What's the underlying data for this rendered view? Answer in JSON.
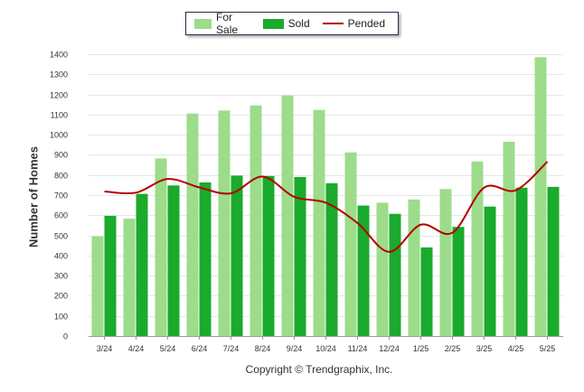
{
  "chart_data": {
    "type": "bar",
    "categories": [
      "3/24",
      "4/24",
      "5/24",
      "6/24",
      "7/24",
      "8/24",
      "9/24",
      "10/24",
      "11/24",
      "12/24",
      "1/25",
      "2/25",
      "3/25",
      "4/25",
      "5/25"
    ],
    "series": [
      {
        "name": "For Sale",
        "type": "bar",
        "color": "#9cdc8a",
        "values": [
          495,
          583,
          882,
          1105,
          1120,
          1145,
          1195,
          1123,
          912,
          662,
          678,
          730,
          867,
          965,
          1385
        ]
      },
      {
        "name": "Sold",
        "type": "bar",
        "color": "#1aaa2c",
        "values": [
          597,
          706,
          748,
          763,
          797,
          795,
          790,
          759,
          648,
          607,
          440,
          542,
          643,
          737,
          741
        ]
      },
      {
        "name": "Pended",
        "type": "line",
        "color": "#b30000",
        "values": [
          718,
          712,
          780,
          738,
          709,
          792,
          691,
          662,
          561,
          418,
          553,
          513,
          737,
          724,
          866
        ]
      }
    ],
    "ylabel": "Number of Homes",
    "ylim": [
      0,
      1400
    ],
    "yticks": [
      0,
      100,
      200,
      300,
      400,
      500,
      600,
      700,
      800,
      900,
      1000,
      1100,
      1200,
      1300,
      1400
    ],
    "grid": true,
    "legend_position": "top-center"
  },
  "footer": {
    "copyright": "Copyright © Trendgraphix, Inc."
  }
}
